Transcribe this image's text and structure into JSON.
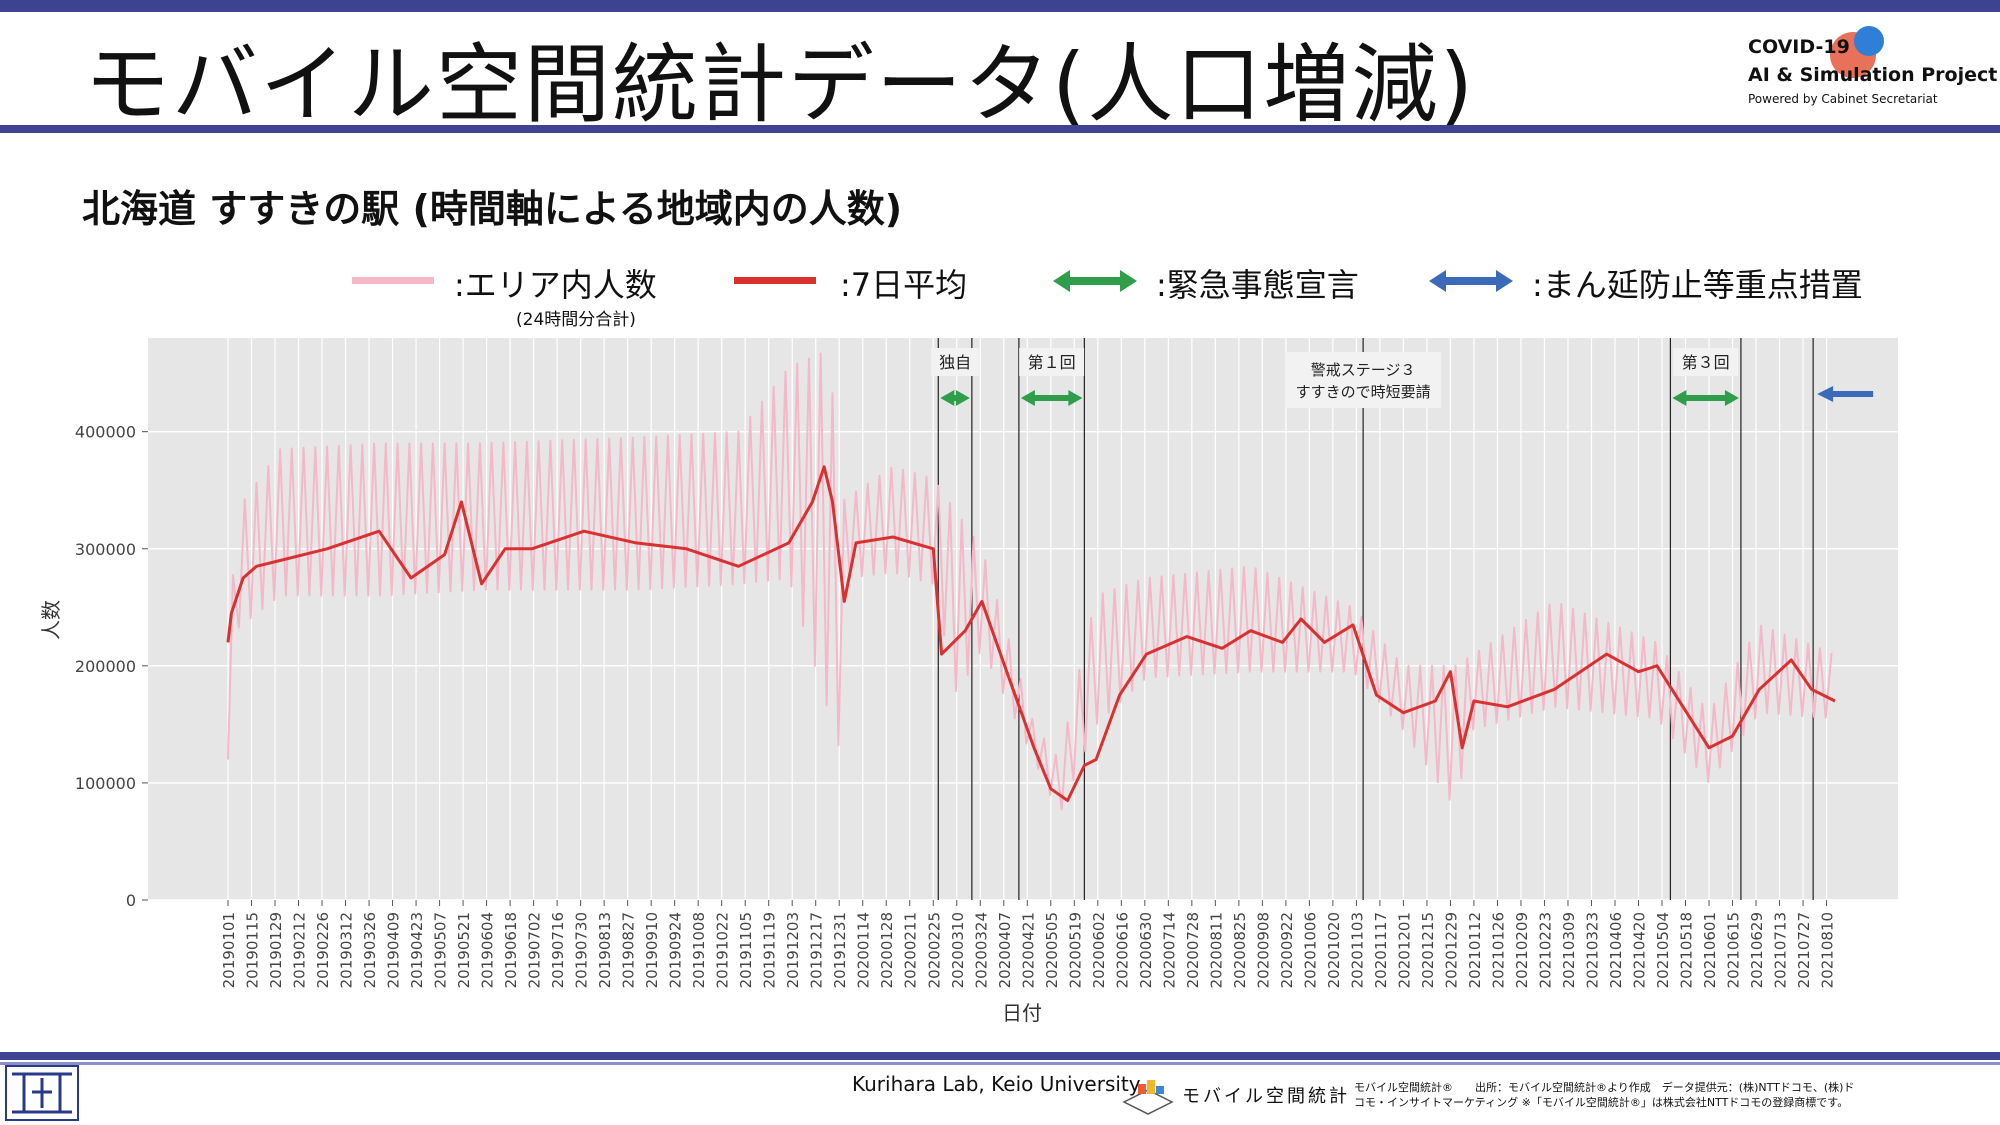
{
  "slide": {
    "title": "モバイル空間統計データ(人口増減)",
    "subtitle": "北海道 すすきの駅 (時間軸による地域内の人数)",
    "accent_color": "#3d4291"
  },
  "logo": {
    "line1": "COVID-19",
    "line2": "AI & Simulation Project",
    "line3": "Powered by Cabinet Secretariat"
  },
  "legend": {
    "daily_label": ":エリア内人数",
    "daily_note": "(24時間分合計)",
    "avg_label": ":7日平均",
    "emergency_label": ":緊急事態宣言",
    "semi_emergency_label": ":まん延防止等重点措置",
    "daily_color": "#f4b8c8",
    "avg_color": "#d93030",
    "emergency_color": "#2e9e4a",
    "semi_emergency_color": "#3a6ab8"
  },
  "chart_data": {
    "type": "line",
    "xlabel": "日付",
    "ylabel": "人数",
    "ylim": [
      0,
      480000
    ],
    "yticks": [
      0,
      100000,
      200000,
      300000,
      400000
    ],
    "grid": true,
    "x_start": "20190101",
    "x_end": "20210818",
    "xtick_labels": [
      "20190101",
      "20190115",
      "20190129",
      "20190212",
      "20190226",
      "20190312",
      "20190326",
      "20190409",
      "20190423",
      "20190507",
      "20190521",
      "20190604",
      "20190618",
      "20190702",
      "20190716",
      "20190730",
      "20190813",
      "20190827",
      "20190910",
      "20190924",
      "20191008",
      "20191022",
      "20191105",
      "20191119",
      "20191203",
      "20191217",
      "20191231",
      "20200114",
      "20200128",
      "20200211",
      "20200225",
      "20200310",
      "20200324",
      "20200407",
      "20200421",
      "20200505",
      "20200519",
      "20200602",
      "20200616",
      "20200630",
      "20200714",
      "20200728",
      "20200811",
      "20200825",
      "20200908",
      "20200922",
      "20201006",
      "20201020",
      "20201103",
      "20201117",
      "20201201",
      "20201215",
      "20201229",
      "20210112",
      "20210126",
      "20210209",
      "20210223",
      "20210309",
      "20210323",
      "20210406",
      "20210420",
      "20210504",
      "20210518",
      "20210601",
      "20210615",
      "20210629",
      "20210713",
      "20210727",
      "20210810"
    ],
    "series": [
      {
        "name": "エリア内人数",
        "kind": "daily",
        "note": "weekly peaks and troughs",
        "weekly_high": [
          [
            "20190101",
            120000
          ],
          [
            "20190105",
            330000
          ],
          [
            "20190201",
            385000
          ],
          [
            "20190401",
            390000
          ],
          [
            "20190601",
            390000
          ],
          [
            "20190901",
            395000
          ],
          [
            "20191101",
            400000
          ],
          [
            "20191201",
            455000
          ],
          [
            "20191225",
            470000
          ],
          [
            "20200101",
            340000
          ],
          [
            "20200201",
            370000
          ],
          [
            "20200225",
            360000
          ],
          [
            "20200325",
            300000
          ],
          [
            "20200425",
            150000
          ],
          [
            "20200510",
            120000
          ],
          [
            "20200601",
            260000
          ],
          [
            "20200701",
            275000
          ],
          [
            "20200901",
            285000
          ],
          [
            "20201101",
            250000
          ],
          [
            "20201201",
            200000
          ],
          [
            "20210101",
            200000
          ],
          [
            "20210301",
            255000
          ],
          [
            "20210501",
            220000
          ],
          [
            "20210601",
            160000
          ],
          [
            "20210701",
            235000
          ],
          [
            "20210815",
            210000
          ]
        ],
        "weekly_low": [
          [
            "20190101",
            120000
          ],
          [
            "20190105",
            230000
          ],
          [
            "20190201",
            260000
          ],
          [
            "20190401",
            260000
          ],
          [
            "20190601",
            265000
          ],
          [
            "20190901",
            265000
          ],
          [
            "20191101",
            270000
          ],
          [
            "20191201",
            275000
          ],
          [
            "20191231",
            130000
          ],
          [
            "20200105",
            275000
          ],
          [
            "20200201",
            280000
          ],
          [
            "20200225",
            270000
          ],
          [
            "20200310",
            175000
          ],
          [
            "20200325",
            215000
          ],
          [
            "20200425",
            120000
          ],
          [
            "20200510",
            72000
          ],
          [
            "20200601",
            150000
          ],
          [
            "20200701",
            190000
          ],
          [
            "20200901",
            195000
          ],
          [
            "20201101",
            195000
          ],
          [
            "20201201",
            145000
          ],
          [
            "20210101",
            78000
          ],
          [
            "20210110",
            145000
          ],
          [
            "20210301",
            165000
          ],
          [
            "20210501",
            155000
          ],
          [
            "20210601",
            100000
          ],
          [
            "20210701",
            160000
          ],
          [
            "20210815",
            155000
          ]
        ]
      },
      {
        "name": "7日平均",
        "kind": "avg",
        "points": [
          [
            "20190101",
            220000
          ],
          [
            "20190103",
            245000
          ],
          [
            "20190110",
            275000
          ],
          [
            "20190118",
            285000
          ],
          [
            "20190201",
            290000
          ],
          [
            "20190301",
            300000
          ],
          [
            "20190401",
            315000
          ],
          [
            "20190420",
            275000
          ],
          [
            "20190510",
            295000
          ],
          [
            "20190520",
            340000
          ],
          [
            "20190601",
            270000
          ],
          [
            "20190615",
            300000
          ],
          [
            "20190701",
            300000
          ],
          [
            "20190801",
            315000
          ],
          [
            "20190901",
            305000
          ],
          [
            "20191001",
            300000
          ],
          [
            "20191101",
            285000
          ],
          [
            "20191201",
            305000
          ],
          [
            "20191215",
            340000
          ],
          [
            "20191222",
            370000
          ],
          [
            "20191227",
            340000
          ],
          [
            "20200103",
            255000
          ],
          [
            "20200110",
            305000
          ],
          [
            "20200201",
            310000
          ],
          [
            "20200225",
            300000
          ],
          [
            "20200301",
            210000
          ],
          [
            "20200315",
            230000
          ],
          [
            "20200325",
            255000
          ],
          [
            "20200410",
            190000
          ],
          [
            "20200425",
            130000
          ],
          [
            "20200505",
            95000
          ],
          [
            "20200515",
            85000
          ],
          [
            "20200525",
            115000
          ],
          [
            "20200601",
            120000
          ],
          [
            "20200615",
            175000
          ],
          [
            "20200701",
            210000
          ],
          [
            "20200725",
            225000
          ],
          [
            "20200815",
            215000
          ],
          [
            "20200901",
            230000
          ],
          [
            "20200920",
            220000
          ],
          [
            "20201001",
            240000
          ],
          [
            "20201015",
            220000
          ],
          [
            "20201101",
            235000
          ],
          [
            "20201115",
            175000
          ],
          [
            "20201201",
            160000
          ],
          [
            "20201220",
            170000
          ],
          [
            "20201229",
            195000
          ],
          [
            "20210105",
            130000
          ],
          [
            "20210112",
            170000
          ],
          [
            "20210201",
            165000
          ],
          [
            "20210301",
            180000
          ],
          [
            "20210401",
            210000
          ],
          [
            "20210420",
            195000
          ],
          [
            "20210501",
            200000
          ],
          [
            "20210601",
            130000
          ],
          [
            "20210615",
            140000
          ],
          [
            "20210701",
            180000
          ],
          [
            "20210720",
            205000
          ],
          [
            "20210801",
            180000
          ],
          [
            "20210815",
            170000
          ]
        ]
      }
    ],
    "period_lines": [
      "20200228",
      "20200319",
      "20200416",
      "20200525",
      "20201107",
      "20210509",
      "20210620",
      "20210802"
    ],
    "periods": [
      {
        "label": "独自",
        "type": "emergency",
        "start": "20200228",
        "end": "20200319"
      },
      {
        "label": "第１回",
        "type": "emergency",
        "start": "20200416",
        "end": "20200525"
      },
      {
        "label": "第３回",
        "type": "emergency",
        "start": "20210509",
        "end": "20210620"
      },
      {
        "label": "",
        "type": "semi-emergency",
        "start": "20210802",
        "end": "20210818"
      }
    ],
    "annotations": [
      {
        "label_line1": "警戒ステージ３",
        "label_line2": "すすきので時短要請",
        "date": "20201107"
      }
    ]
  },
  "footer": {
    "lab": "Kurihara Lab, Keio University",
    "brand": "モバイル空間統計",
    "note_line1": "モバイル空間統計®　　出所：モバイル空間統計®より作成　データ提供元：(株)NTTドコモ、(株)ド",
    "note_line2": "コモ・インサイトマーケティング ※「モバイル空間統計®」は株式会社NTTドコモの登録商標です。"
  }
}
